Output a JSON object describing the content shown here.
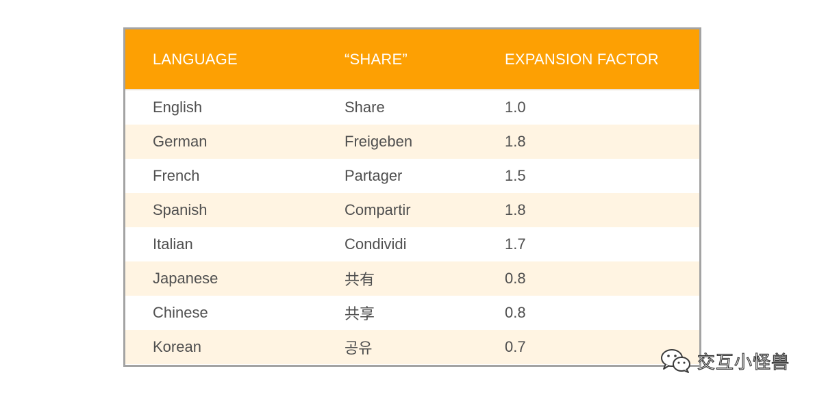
{
  "table": {
    "header": {
      "language": "LANGUAGE",
      "share": "“SHARE”",
      "factor": "EXPANSION FACTOR"
    },
    "rows": [
      {
        "language": "English",
        "share": "Share",
        "factor": "1.0"
      },
      {
        "language": "German",
        "share": "Freigeben",
        "factor": "1.8"
      },
      {
        "language": "French",
        "share": "Partager",
        "factor": "1.5"
      },
      {
        "language": "Spanish",
        "share": "Compartir",
        "factor": "1.8"
      },
      {
        "language": "Italian",
        "share": "Condividi",
        "factor": "1.7"
      },
      {
        "language": "Japanese",
        "share": "共有",
        "factor": "0.8"
      },
      {
        "language": "Chinese",
        "share": "共享",
        "factor": "0.8"
      },
      {
        "language": "Korean",
        "share": "공유",
        "factor": "0.7"
      }
    ]
  },
  "watermark": {
    "icon": "wechat-icon",
    "text": "交互小怪兽"
  },
  "colors": {
    "header_bg": "#fda003",
    "row_alt_bg": "#fff4e2",
    "border": "#a3a3a3",
    "body_text": "#4f4f4f"
  }
}
